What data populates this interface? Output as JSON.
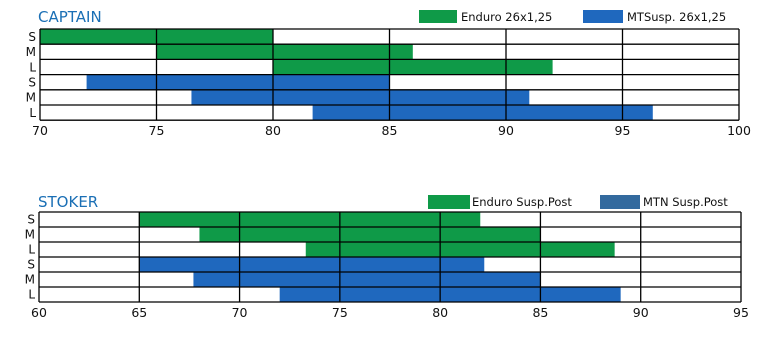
{
  "chart_data": [
    {
      "type": "bar",
      "orientation": "horizontal-range",
      "title": "CAPTAIN",
      "title_color": "#1a6fb5",
      "categories": [
        "S",
        "M",
        "L",
        "S",
        "M",
        "L"
      ],
      "series": [
        {
          "name": "Enduro 26x1,25",
          "color": "#0f9a48",
          "rows": [
            0,
            1,
            2
          ],
          "ranges": [
            [
              70,
              80
            ],
            [
              75,
              86
            ],
            [
              80,
              92
            ]
          ]
        },
        {
          "name": "MTSusp. 26x1,25",
          "color": "#1f68be",
          "rows": [
            3,
            4,
            5
          ],
          "ranges": [
            [
              72,
              85
            ],
            [
              76.5,
              91
            ],
            [
              81.7,
              96.3
            ]
          ]
        }
      ],
      "xlim": [
        70,
        100
      ],
      "xticks": [
        70,
        75,
        80,
        85,
        90,
        95,
        100
      ],
      "xtick_labels": [
        "70",
        "75",
        "80",
        "85",
        "90",
        "95",
        "100"
      ],
      "grid": true,
      "legend_position": "top-right"
    },
    {
      "type": "bar",
      "orientation": "horizontal-range",
      "title": "STOKER",
      "title_color": "#1a6fb5",
      "categories": [
        "S",
        "M",
        "L",
        "S",
        "M",
        "L"
      ],
      "series": [
        {
          "name": "Enduro Susp.Post",
          "color": "#0f9a48",
          "rows": [
            0,
            1,
            2
          ],
          "ranges": [
            [
              65,
              82
            ],
            [
              68,
              85
            ],
            [
              73.3,
              88.7
            ]
          ]
        },
        {
          "name": "MTN Susp.Post",
          "color": "#1f68be",
          "legend_color": "#336a9e",
          "rows": [
            3,
            4,
            5
          ],
          "ranges": [
            [
              65,
              82.2
            ],
            [
              67.7,
              85
            ],
            [
              72,
              89
            ]
          ]
        }
      ],
      "xlim": [
        60,
        95
      ],
      "xticks": [
        60,
        65,
        70,
        75,
        80,
        85,
        90,
        95
      ],
      "xtick_labels": [
        "60",
        "65",
        "70",
        "75",
        "80",
        "85",
        "90",
        "95"
      ],
      "grid": true,
      "legend_position": "top-right"
    }
  ]
}
